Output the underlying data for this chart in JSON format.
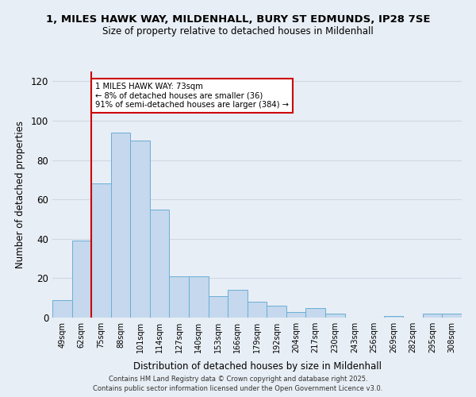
{
  "title1": "1, MILES HAWK WAY, MILDENHALL, BURY ST EDMUNDS, IP28 7SE",
  "title2": "Size of property relative to detached houses in Mildenhall",
  "xlabel": "Distribution of detached houses by size in Mildenhall",
  "ylabel": "Number of detached properties",
  "bin_labels": [
    "49sqm",
    "62sqm",
    "75sqm",
    "88sqm",
    "101sqm",
    "114sqm",
    "127sqm",
    "140sqm",
    "153sqm",
    "166sqm",
    "179sqm",
    "192sqm",
    "204sqm",
    "217sqm",
    "230sqm",
    "243sqm",
    "256sqm",
    "269sqm",
    "282sqm",
    "295sqm",
    "308sqm"
  ],
  "bar_heights": [
    9,
    39,
    68,
    94,
    90,
    55,
    21,
    21,
    11,
    14,
    8,
    6,
    3,
    5,
    2,
    0,
    0,
    1,
    0,
    2,
    2
  ],
  "bar_color": "#c5d8ed",
  "bar_edge_color": "#6aaed6",
  "property_line_x_label": "75sqm",
  "property_line_color": "#cc0000",
  "annotation_text": "1 MILES HAWK WAY: 73sqm\n← 8% of detached houses are smaller (36)\n91% of semi-detached houses are larger (384) →",
  "annotation_box_color": "#ffffff",
  "annotation_box_edge_color": "#cc0000",
  "ylim": [
    0,
    125
  ],
  "yticks": [
    0,
    20,
    40,
    60,
    80,
    100,
    120
  ],
  "grid_color": "#d0d8e4",
  "background_color": "#e8eef5",
  "footer1": "Contains HM Land Registry data © Crown copyright and database right 2025.",
  "footer2": "Contains public sector information licensed under the Open Government Licence v3.0."
}
